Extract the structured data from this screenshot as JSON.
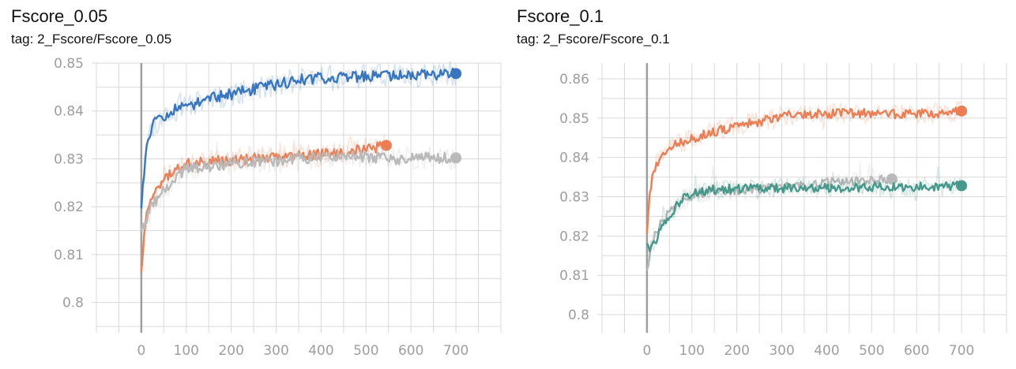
{
  "chart_data": [
    {
      "type": "line",
      "title": "Fscore_0.05",
      "subtitle": "tag: 2_Fscore/Fscore_0.05",
      "xlabel": "",
      "ylabel": "",
      "xlim": [
        -100,
        800
      ],
      "ylim": [
        0.795,
        0.85
      ],
      "x_ticks": [
        0,
        100,
        200,
        300,
        400,
        500,
        600,
        700
      ],
      "y_ticks": [
        0.8,
        0.81,
        0.82,
        0.83,
        0.84,
        0.85
      ],
      "grid": true,
      "series": [
        {
          "color": "#3876c1",
          "x_end": 700,
          "x": [
            0,
            5,
            10,
            20,
            30,
            50,
            80,
            100,
            150,
            200,
            250,
            300,
            350,
            400,
            450,
            500,
            550,
            600,
            650,
            700
          ],
          "y": [
            0.82,
            0.826,
            0.832,
            0.836,
            0.8375,
            0.839,
            0.8405,
            0.841,
            0.8425,
            0.8435,
            0.8445,
            0.8455,
            0.8465,
            0.847,
            0.847,
            0.8472,
            0.8472,
            0.8475,
            0.8475,
            0.8478
          ]
        },
        {
          "color": "#ed7e53",
          "x_end": 545,
          "x": [
            0,
            5,
            10,
            20,
            30,
            50,
            80,
            100,
            150,
            200,
            250,
            300,
            350,
            400,
            450,
            500,
            545
          ],
          "y": [
            0.806,
            0.812,
            0.817,
            0.821,
            0.823,
            0.826,
            0.828,
            0.829,
            0.8295,
            0.8295,
            0.83,
            0.8305,
            0.8305,
            0.831,
            0.8315,
            0.832,
            0.8328
          ]
        },
        {
          "color": "#b9b9b9",
          "x_end": 700,
          "x": [
            0,
            5,
            10,
            20,
            30,
            50,
            80,
            100,
            150,
            200,
            250,
            300,
            350,
            400,
            450,
            500,
            550,
            600,
            650,
            700
          ],
          "y": [
            0.816,
            0.815,
            0.817,
            0.8195,
            0.821,
            0.8235,
            0.8265,
            0.828,
            0.8285,
            0.829,
            0.8295,
            0.8295,
            0.83,
            0.8305,
            0.8305,
            0.8305,
            0.83,
            0.83,
            0.8302,
            0.8302
          ]
        }
      ]
    },
    {
      "type": "line",
      "title": "Fscore_0.1",
      "subtitle": "tag: 2_Fscore/Fscore_0.1",
      "xlabel": "",
      "ylabel": "",
      "xlim": [
        -100,
        800
      ],
      "ylim": [
        0.797,
        0.864
      ],
      "x_ticks": [
        0,
        100,
        200,
        300,
        400,
        500,
        600,
        700
      ],
      "y_ticks": [
        0.8,
        0.81,
        0.82,
        0.83,
        0.84,
        0.85,
        0.86
      ],
      "grid": true,
      "series": [
        {
          "color": "#ed7e53",
          "x_end": 700,
          "x": [
            0,
            5,
            10,
            20,
            30,
            50,
            80,
            100,
            150,
            200,
            250,
            300,
            350,
            400,
            450,
            500,
            550,
            600,
            650,
            700
          ],
          "y": [
            0.8215,
            0.829,
            0.834,
            0.838,
            0.84,
            0.8425,
            0.844,
            0.8448,
            0.8465,
            0.848,
            0.849,
            0.8505,
            0.851,
            0.8512,
            0.8512,
            0.8512,
            0.851,
            0.8512,
            0.8512,
            0.8518
          ]
        },
        {
          "color": "#b9b9b9",
          "x_end": 545,
          "x": [
            0,
            5,
            10,
            20,
            30,
            50,
            80,
            100,
            150,
            200,
            250,
            300,
            350,
            400,
            450,
            500,
            545
          ],
          "y": [
            0.8115,
            0.814,
            0.818,
            0.821,
            0.823,
            0.826,
            0.829,
            0.8305,
            0.8315,
            0.8315,
            0.832,
            0.8325,
            0.833,
            0.8335,
            0.834,
            0.8342,
            0.8345
          ]
        },
        {
          "color": "#45998b",
          "x_end": 700,
          "x": [
            0,
            5,
            10,
            20,
            30,
            50,
            80,
            100,
            150,
            200,
            250,
            300,
            350,
            400,
            450,
            500,
            550,
            600,
            650,
            700
          ],
          "y": [
            0.8175,
            0.816,
            0.817,
            0.819,
            0.8215,
            0.8255,
            0.8295,
            0.831,
            0.8318,
            0.832,
            0.8322,
            0.8322,
            0.8322,
            0.8322,
            0.8322,
            0.8325,
            0.8325,
            0.8325,
            0.8325,
            0.8328
          ]
        }
      ]
    }
  ]
}
